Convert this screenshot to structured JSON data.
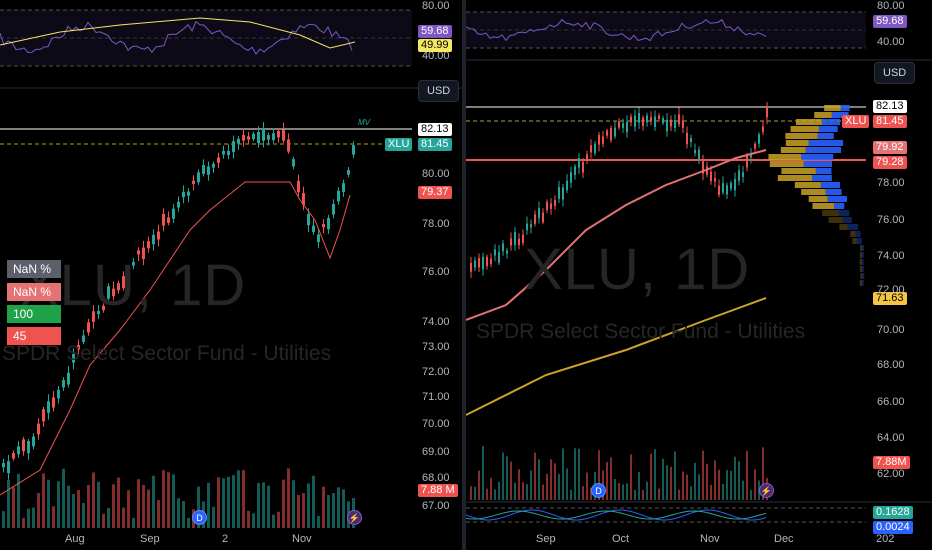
{
  "ticker": "XLU",
  "interval": "1D",
  "fund_name": "SPDR Select Sector Fund - Utilities",
  "currency": "USD",
  "colors": {
    "up": "#26a69a",
    "down": "#ef5350",
    "rsi": "#7e57c2",
    "ma_short": "#e57373",
    "ma_long": "#c9a227",
    "profile_yellow": "#c9a227",
    "profile_blue": "#2962ff"
  },
  "left": {
    "rsi_axis": [
      "80.00",
      "40.00"
    ],
    "rsi_values": [
      "59.68",
      "49.99"
    ],
    "price_axis": [
      "80.00",
      "78.00",
      "76.00",
      "74.00",
      "73.00",
      "72.00",
      "71.00",
      "70.00",
      "69.00",
      "68.00",
      "67.00"
    ],
    "last_price": "82.13",
    "symbol_tag": "XLU",
    "symbol_price": "81.45",
    "stop_level": "79.37",
    "volume": "7.88 M",
    "table": [
      "NaN  %",
      "NaN  %",
      "100",
      "45"
    ],
    "x_labels": [
      "Aug",
      "Sep",
      "2",
      "Nov"
    ],
    "annotation": "MV",
    "badge_d": "D",
    "badge_flash": "⚡"
  },
  "right": {
    "rsi_axis": [
      "80.00",
      "40.00"
    ],
    "rsi_value": "59.68",
    "price_axis": [
      "78.00",
      "76.00",
      "74.00",
      "72.00",
      "70.00",
      "68.00",
      "66.00",
      "64.00",
      "62.00"
    ],
    "last_price": "82.13",
    "symbol_tag": "XLU",
    "symbol_price": "81.45",
    "poc_high": "79.92",
    "poc_low": "79.28",
    "ma_long_value": "71.63",
    "volume": "7.88M",
    "osc_values": [
      "0.1628",
      "0.0024"
    ],
    "x_labels": [
      "Sep",
      "Oct",
      "Nov",
      "Dec",
      "202"
    ],
    "badge_d": "D",
    "badge_flash": "⚡"
  }
}
